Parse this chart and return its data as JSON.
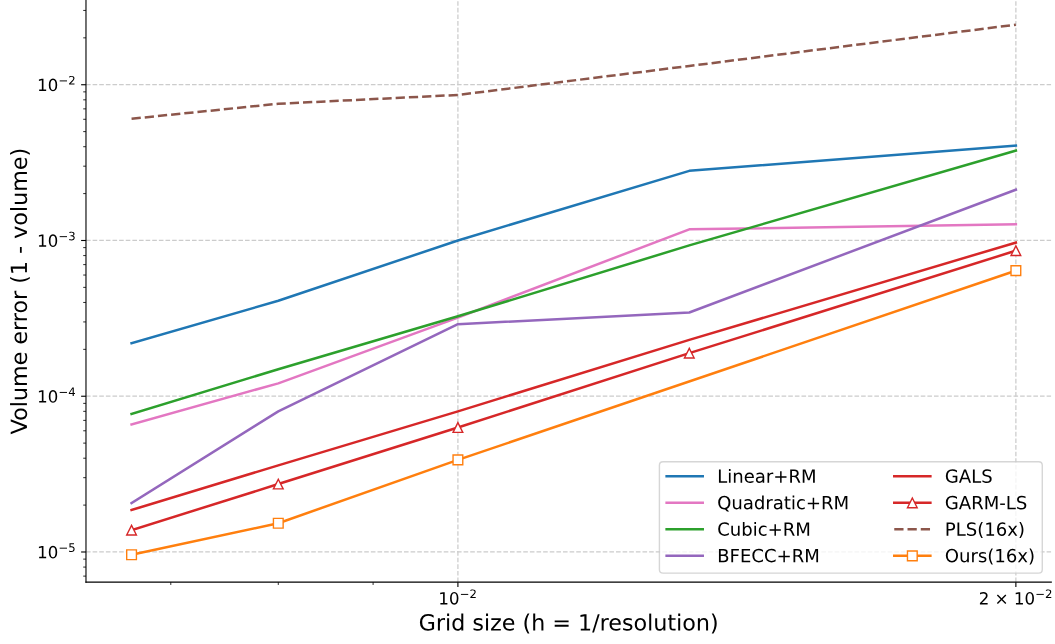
{
  "chart_data": {
    "type": "line",
    "xlabel": "Grid size (h = 1/resolution)",
    "ylabel": "Volume error (1 - volume)",
    "x": [
      0.006667,
      0.008,
      0.01,
      0.01333,
      0.02
    ],
    "series": [
      {
        "name": "Linear+RM",
        "color": "#1f77b4",
        "values": [
          0.000219,
          0.00041,
          0.001,
          0.0028,
          0.00406
        ]
      },
      {
        "name": "Quadratic+RM",
        "color": "#e377c2",
        "values": [
          6.6e-05,
          0.000121,
          0.00032,
          0.00118,
          0.00127
        ]
      },
      {
        "name": "Cubic+RM",
        "color": "#2ca02c",
        "values": [
          7.7e-05,
          0.000149,
          0.000326,
          0.00093,
          0.00378
        ]
      },
      {
        "name": "BFECC+RM",
        "color": "#9467bd",
        "values": [
          2.06e-05,
          8e-05,
          0.00029,
          0.000345,
          0.00212
        ]
      },
      {
        "name": "GALS",
        "color": "#d62728",
        "values": [
          1.86e-05,
          3.6e-05,
          8e-05,
          0.00023,
          0.00097
        ]
      },
      {
        "name": "GARM-LS",
        "color": "#d62728",
        "marker": "triangle",
        "values": [
          1.38e-05,
          2.73e-05,
          6.3e-05,
          0.000189,
          0.00086
        ]
      },
      {
        "name": "PLS(16x)",
        "color": "#8c564b",
        "line_style": "dashed",
        "values": [
          0.00605,
          0.00755,
          0.0086,
          0.0132,
          0.0243
        ]
      },
      {
        "name": "Ours(16x)",
        "color": "#ff7f0e",
        "marker": "square",
        "x": [
          0.006667,
          0.008,
          0.01,
          0.02
        ],
        "values": [
          9.6e-06,
          1.53e-05,
          3.9e-05,
          0.00064
        ]
      }
    ],
    "log": "xy",
    "xlim": [
      0.0063,
      0.0209
    ],
    "ylim": [
      6.4e-06,
      0.035
    ],
    "xticks": [
      {
        "value": 0.01,
        "label": "10$^{−2}$"
      },
      {
        "value": 0.02,
        "label": "2 × 10$^{−2}$"
      }
    ],
    "yticks": [
      {
        "value": 1e-05,
        "label": "10$^{−5}$"
      },
      {
        "value": 0.0001,
        "label": "10$^{−4}$"
      },
      {
        "value": 0.001,
        "label": "10$^{−3}$"
      },
      {
        "value": 0.01,
        "label": "10$^{−2}$"
      }
    ],
    "grid": true,
    "legend": "bottom right",
    "marker": "none",
    "line_style": "solid"
  }
}
